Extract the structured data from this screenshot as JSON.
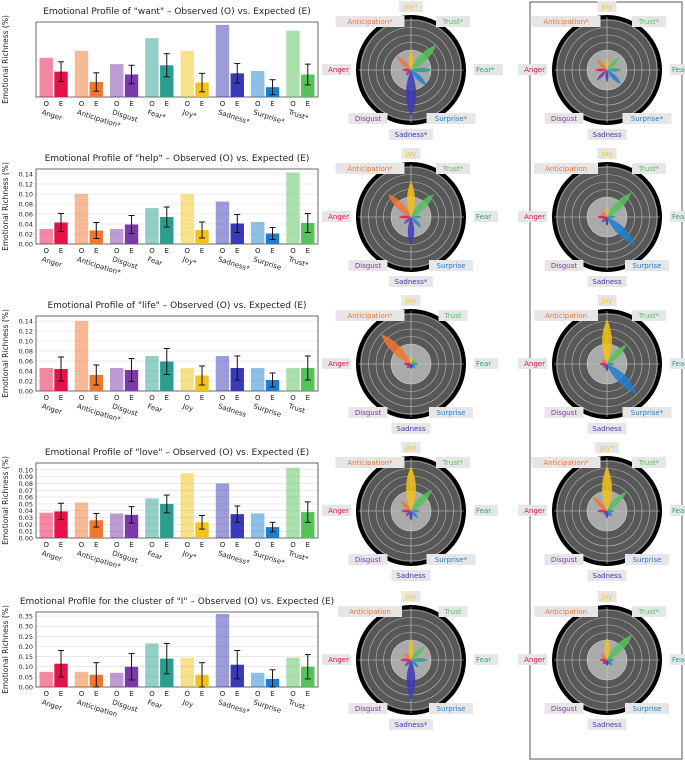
{
  "colors": {
    "emotions": [
      "#e8124a",
      "#f2762e",
      "#7a3aa8",
      "#2a9d8f",
      "#f2c318",
      "#3a3ab8",
      "#1e7fd0",
      "#55c25a"
    ],
    "obs_alpha": 0.5,
    "polar_bg": "#585858",
    "polar_inner": "#aaaaaa",
    "polar_ring": "#000000",
    "label_box": "#e6e6e6",
    "panel_border": "#555555"
  },
  "emotion_names": [
    "Anger",
    "Anticipation",
    "Disgust",
    "Fear",
    "Joy",
    "Sadness",
    "Surprise",
    "Trust"
  ],
  "chart_data": [
    {
      "type": "bar",
      "title": "Emotional Profile of \"want\" – Observed (O) vs. Expected (E)",
      "ylabel": "Emotional Richness (%)",
      "categories": [
        "Anger",
        "Anticipation*",
        "Disgust",
        "Fear*",
        "Joy*",
        "Sadness*",
        "Surprise*",
        "Trust*"
      ],
      "oe_labels": [
        "O",
        "E"
      ],
      "observed": [
        0.068,
        0.08,
        0.057,
        0.102,
        0.08,
        0.125,
        0.045,
        0.115
      ],
      "expected": [
        0.044,
        0.026,
        0.039,
        0.055,
        0.025,
        0.041,
        0.017,
        0.039
      ],
      "errors": [
        0.017,
        0.016,
        0.016,
        0.02,
        0.016,
        0.017,
        0.013,
        0.018
      ],
      "ylim": [
        0,
        0.13
      ],
      "yticks": [],
      "yticklabels": [],
      "polar_observed": {
        "labels": [
          "Joy*",
          "Trust*",
          "Fear*",
          "Surprise*",
          "Sadness*",
          "Disgust",
          "Anger",
          "Anticipation*"
        ],
        "values": [
          0.4,
          0.72,
          0.42,
          0.45,
          0.92,
          0.15,
          0.18,
          0.4
        ]
      },
      "polar_expected": {
        "labels": [
          "Joy",
          "Trust*",
          "Fear",
          "Surprise*",
          "Sadness",
          "Disgust",
          "Anger",
          "Anticipation*"
        ],
        "values": [
          0.25,
          0.35,
          0.3,
          0.4,
          0.25,
          0.3,
          0.25,
          0.3
        ]
      }
    },
    {
      "type": "bar",
      "title": "Emotional Profile of \"help\" – Observed (O) vs. Expected (E)",
      "ylabel": "Emotional Richness (%)",
      "categories": [
        "Anger",
        "Anticipation*",
        "Disgust",
        "Fear",
        "Joy*",
        "Sadness*",
        "Surprise",
        "Trust*"
      ],
      "oe_labels": [
        "O",
        "E"
      ],
      "observed": [
        0.03,
        0.1,
        0.03,
        0.072,
        0.1,
        0.085,
        0.044,
        0.143
      ],
      "expected": [
        0.043,
        0.027,
        0.039,
        0.054,
        0.028,
        0.041,
        0.021,
        0.042
      ],
      "errors": [
        0.018,
        0.016,
        0.018,
        0.02,
        0.016,
        0.018,
        0.012,
        0.019
      ],
      "ylim": [
        0,
        0.15
      ],
      "yticks": [
        0,
        0.02,
        0.04,
        0.06,
        0.08,
        0.1,
        0.12,
        0.14
      ],
      "yticklabels": [
        "0.00",
        "0.02",
        "0.04",
        "0.06",
        "0.08",
        "0.10",
        "0.12",
        "0.14"
      ],
      "polar_observed": {
        "labels": [
          "Joy",
          "Trust*",
          "Fear",
          "Surprise",
          "Sadness*",
          "Disgust",
          "Anger",
          "Anticipation*"
        ],
        "values": [
          0.72,
          0.65,
          0.22,
          0.3,
          0.58,
          0.2,
          0.25,
          0.65
        ]
      },
      "polar_expected": {
        "labels": [
          "Joy",
          "Trust*",
          "Fear",
          "Surprise",
          "Sadness",
          "Disgust",
          "Anger",
          "Anticipation"
        ],
        "values": [
          0.2,
          0.7,
          0.18,
          0.8,
          0.18,
          0.15,
          0.2,
          0.15
        ]
      }
    },
    {
      "type": "bar",
      "title": "Emotional Profile of \"life\" – Observed (O) vs. Expected (E)",
      "ylabel": "Emotional Richness (%)",
      "categories": [
        "Anger",
        "Anticipation*",
        "Disgust",
        "Fear",
        "Joy",
        "Sadness",
        "Surprise",
        "Trust"
      ],
      "oe_labels": [
        "O",
        "E"
      ],
      "observed": [
        0.046,
        0.14,
        0.046,
        0.07,
        0.046,
        0.07,
        0.046,
        0.046
      ],
      "expected": [
        0.044,
        0.032,
        0.042,
        0.059,
        0.031,
        0.046,
        0.022,
        0.046
      ],
      "errors": [
        0.024,
        0.02,
        0.023,
        0.026,
        0.019,
        0.024,
        0.014,
        0.024
      ],
      "ylim": [
        0,
        0.15
      ],
      "yticks": [
        0,
        0.02,
        0.04,
        0.06,
        0.08,
        0.1,
        0.12,
        0.14
      ],
      "yticklabels": [
        "0.00",
        "0.02",
        "0.04",
        "0.06",
        "0.08",
        "0.10",
        "0.12",
        "0.14"
      ],
      "polar_observed": {
        "labels": [
          "Joy",
          "Trust",
          "Fear",
          "Surprise",
          "Sadness",
          "Disgust",
          "Anger",
          "Anticipation*"
        ],
        "values": [
          0.15,
          0.12,
          0.15,
          0.12,
          0.1,
          0.12,
          0.15,
          0.85
        ]
      },
      "polar_expected": {
        "labels": [
          "Joy",
          "Trust*",
          "Fear",
          "Surprise*",
          "Sadness",
          "Disgust",
          "Anger",
          "Anticipation"
        ],
        "values": [
          0.9,
          0.55,
          0.15,
          0.85,
          0.15,
          0.1,
          0.15,
          0.15
        ]
      }
    },
    {
      "type": "bar",
      "title": "Emotional Profile of \"love\" – Observed (O) vs. Expected (E)",
      "ylabel": "Emotional Richness (%)",
      "categories": [
        "Anger",
        "Anticipation*",
        "Disgust",
        "Fear",
        "Joy*",
        "Sadness*",
        "Surprise*",
        "Trust*"
      ],
      "oe_labels": [
        "O",
        "E"
      ],
      "observed": [
        0.037,
        0.052,
        0.036,
        0.058,
        0.095,
        0.08,
        0.036,
        0.103
      ],
      "expected": [
        0.039,
        0.026,
        0.034,
        0.05,
        0.023,
        0.035,
        0.016,
        0.038
      ],
      "errors": [
        0.012,
        0.01,
        0.012,
        0.013,
        0.01,
        0.012,
        0.007,
        0.015
      ],
      "ylim": [
        0,
        0.11
      ],
      "yticks": [
        0,
        0.01,
        0.02,
        0.03,
        0.04,
        0.05,
        0.06,
        0.07,
        0.08,
        0.09,
        0.1
      ],
      "yticklabels": [
        "0.00",
        "0.01",
        "0.02",
        "0.03",
        "0.04",
        "0.05",
        "0.06",
        "0.07",
        "0.08",
        "0.09",
        "0.10"
      ],
      "polar_observed": {
        "labels": [
          "Joy",
          "Trust*",
          "Fear",
          "Surprise*",
          "Sadness",
          "Disgust",
          "Anger",
          "Anticipation*"
        ],
        "values": [
          0.9,
          0.6,
          0.18,
          0.2,
          0.2,
          0.15,
          0.2,
          0.3
        ]
      },
      "polar_expected": {
        "labels": [
          "Joy*",
          "Trust*",
          "Fear",
          "Surprise",
          "Sadness",
          "Disgust",
          "Anger",
          "Anticipation*"
        ],
        "values": [
          0.9,
          0.55,
          0.15,
          0.15,
          0.15,
          0.1,
          0.2,
          0.4
        ]
      }
    },
    {
      "type": "bar",
      "title": "Emotional Profile for the cluster of \"I\" – Observed (O) vs. Expected (E)",
      "ylabel": "Emotional Richness (%)",
      "categories": [
        "Anger",
        "Anticipation",
        "Disgust",
        "Fear",
        "Joy",
        "Sadness*",
        "Surprise",
        "Trust"
      ],
      "oe_labels": [
        "O",
        "E"
      ],
      "observed": [
        0.075,
        0.075,
        0.07,
        0.215,
        0.145,
        0.36,
        0.07,
        0.145
      ],
      "expected": [
        0.115,
        0.06,
        0.1,
        0.14,
        0.06,
        0.11,
        0.04,
        0.1
      ],
      "errors": [
        0.065,
        0.06,
        0.065,
        0.075,
        0.06,
        0.07,
        0.045,
        0.06
      ],
      "ylim": [
        0,
        0.37
      ],
      "yticks": [
        0,
        0.05,
        0.1,
        0.15,
        0.2,
        0.25,
        0.3,
        0.35
      ],
      "yticklabels": [
        "0.00",
        "0.05",
        "0.10",
        "0.15",
        "0.20",
        "0.25",
        "0.30",
        "0.35"
      ],
      "polar_observed": {
        "labels": [
          "Joy",
          "Trust",
          "Fear",
          "Surprise",
          "Sadness*",
          "Disgust",
          "Anger",
          "Anticipation"
        ],
        "values": [
          0.42,
          0.4,
          0.35,
          0.22,
          0.8,
          0.18,
          0.22,
          0.22
        ]
      },
      "polar_expected": {
        "labels": [
          "Joy",
          "Trust*",
          "Fear",
          "Surprise",
          "Sadness",
          "Disgust",
          "Anger",
          "Anticipation"
        ],
        "values": [
          0.45,
          0.72,
          0.15,
          0.15,
          0.12,
          0.12,
          0.15,
          0.18
        ]
      }
    }
  ]
}
